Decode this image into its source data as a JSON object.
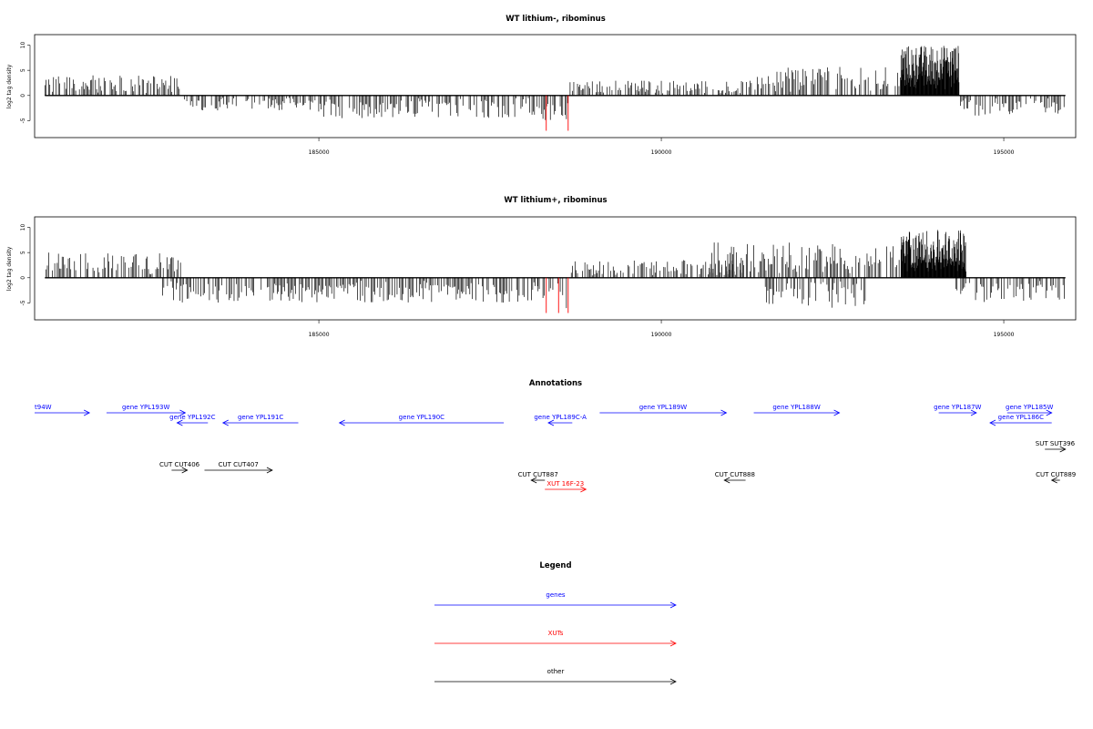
{
  "chart_data": [
    {
      "type": "bar",
      "title": "WT lithium-, ribominus",
      "ylabel": "log2 tag density",
      "xlim": [
        180850,
        196050
      ],
      "ylim": [
        -8,
        11
      ],
      "x_ticks": [
        185000,
        190000,
        195000
      ],
      "y_ticks": [
        -5,
        0,
        5,
        10
      ],
      "grid": false,
      "bar_segments": [
        {
          "from": 181000,
          "to": 183000,
          "strand": "+",
          "max": 4
        },
        {
          "from": 183000,
          "to": 184800,
          "strand": "-",
          "max": 3
        },
        {
          "from": 184800,
          "to": 188200,
          "strand": "-",
          "max": 4.5
        },
        {
          "from": 188200,
          "to": 188650,
          "strand": "-",
          "max": 5,
          "red_positions": [
            188320,
            188640
          ],
          "red_min": -7
        },
        {
          "from": 188650,
          "to": 191400,
          "strand": "+",
          "max": 3
        },
        {
          "from": 191400,
          "to": 193500,
          "strand": "+",
          "max": 6
        },
        {
          "from": 193500,
          "to": 194350,
          "strand": "+",
          "max": 10,
          "dense": true
        },
        {
          "from": 194350,
          "to": 195900,
          "strand": "-",
          "max": 4
        }
      ]
    },
    {
      "type": "bar",
      "title": "WT lithium+, ribominus",
      "ylabel": "log2 tag density",
      "xlim": [
        180850,
        196050
      ],
      "ylim": [
        -8,
        11
      ],
      "x_ticks": [
        185000,
        190000,
        195000
      ],
      "y_ticks": [
        -5,
        0,
        5,
        10
      ],
      "grid": false,
      "bar_segments": [
        {
          "from": 181000,
          "to": 183000,
          "strand": "+",
          "max": 5
        },
        {
          "from": 182700,
          "to": 184900,
          "strand": "-",
          "max": 5
        },
        {
          "from": 184900,
          "to": 188200,
          "strand": "-",
          "max": 5
        },
        {
          "from": 188200,
          "to": 188650,
          "strand": "-",
          "max": 7,
          "red_positions": [
            188320,
            188500,
            188640
          ],
          "red_min": -7
        },
        {
          "from": 188650,
          "to": 191200,
          "strand": "+",
          "max": 3.5
        },
        {
          "from": 190700,
          "to": 193500,
          "strand": "+",
          "max": 7
        },
        {
          "from": 191500,
          "to": 193000,
          "strand": "-",
          "max": 6
        },
        {
          "from": 193500,
          "to": 194450,
          "strand": "+",
          "max": 9.5,
          "dense": true
        },
        {
          "from": 194300,
          "to": 195900,
          "strand": "-",
          "max": 5
        }
      ]
    }
  ],
  "annotations": {
    "title": "Annotations",
    "features": [
      {
        "label": "t94W",
        "start": 180850,
        "end": 181650,
        "strand": "+",
        "kind": "gene",
        "row": 0
      },
      {
        "label": "gene YPL193W",
        "start": 181900,
        "end": 183050,
        "strand": "+",
        "kind": "gene",
        "row": 0
      },
      {
        "label": "gene YPL192C",
        "start": 182930,
        "end": 183380,
        "strand": "-",
        "kind": "gene",
        "row": 1
      },
      {
        "label": "gene YPL191C",
        "start": 183600,
        "end": 184700,
        "strand": "-",
        "kind": "gene",
        "row": 1
      },
      {
        "label": "gene YPL190C",
        "start": 185300,
        "end": 187700,
        "strand": "-",
        "kind": "gene",
        "row": 1
      },
      {
        "label": "gene YPL189C-A",
        "start": 188350,
        "end": 188700,
        "strand": "-",
        "kind": "gene",
        "row": 1
      },
      {
        "label": "gene YPL189W",
        "start": 189100,
        "end": 190950,
        "strand": "+",
        "kind": "gene",
        "row": 0
      },
      {
        "label": "gene YPL188W",
        "start": 191350,
        "end": 192600,
        "strand": "+",
        "kind": "gene",
        "row": 0
      },
      {
        "label": "gene YPL187W",
        "start": 194050,
        "end": 194600,
        "strand": "+",
        "kind": "gene",
        "row": 0
      },
      {
        "label": "gene YPL186C",
        "start": 194800,
        "end": 195700,
        "strand": "-",
        "kind": "gene",
        "row": 1
      },
      {
        "label": "gene YPL185W",
        "start": 195050,
        "end": 195700,
        "strand": "+",
        "kind": "gene",
        "row": 0
      },
      {
        "label": "SUT SUT396",
        "start": 195600,
        "end": 195900,
        "strand": "+",
        "kind": "other",
        "row": 2
      },
      {
        "label": "CUT CUT406",
        "start": 182850,
        "end": 183080,
        "strand": "+",
        "kind": "other",
        "row": 3
      },
      {
        "label": "CUT CUT407",
        "start": 183330,
        "end": 184320,
        "strand": "+",
        "kind": "other",
        "row": 3
      },
      {
        "label": "CUT CUT887",
        "start": 188100,
        "end": 188300,
        "strand": "-",
        "kind": "other",
        "row": 4
      },
      {
        "label": "XUT 16F-23",
        "start": 188300,
        "end": 188900,
        "strand": "+",
        "kind": "xut",
        "row": 5
      },
      {
        "label": "CUT CUT888",
        "start": 190920,
        "end": 191230,
        "strand": "-",
        "kind": "other",
        "row": 4
      },
      {
        "label": "CUT CUT889",
        "start": 195700,
        "end": 195820,
        "strand": "-",
        "kind": "other",
        "row": 4
      }
    ]
  },
  "legend": {
    "title": "Legend",
    "items": [
      {
        "label": "genes",
        "color": "#0000ff"
      },
      {
        "label": "XUTs",
        "color": "#ff0000"
      },
      {
        "label": "other",
        "color": "#000000"
      }
    ]
  },
  "colors": {
    "gene": "#0000ff",
    "xut": "#ff0000",
    "other": "#000000",
    "highlight": "#ff0000"
  }
}
